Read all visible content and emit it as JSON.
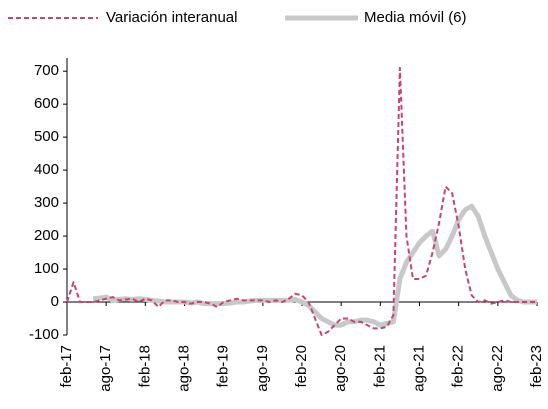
{
  "chart_data": {
    "type": "line",
    "categories": [
      "feb-17",
      null,
      null,
      null,
      null,
      null,
      "ago-17",
      null,
      null,
      null,
      null,
      null,
      "feb-18",
      null,
      null,
      null,
      null,
      null,
      "ago-18",
      null,
      null,
      null,
      null,
      null,
      "feb-19",
      null,
      null,
      null,
      null,
      null,
      "ago-19",
      null,
      null,
      null,
      null,
      null,
      "feb-20",
      null,
      null,
      null,
      null,
      null,
      "ago-20",
      null,
      null,
      null,
      null,
      null,
      "feb-21",
      null,
      null,
      null,
      null,
      null,
      "ago-21",
      null,
      null,
      null,
      null,
      null,
      "feb-22",
      null,
      null,
      null,
      null,
      null,
      "ago-22",
      null,
      null,
      null,
      null,
      null,
      "feb-23"
    ],
    "series": [
      {
        "name": "Variación interanual",
        "color": "#c3466f",
        "dashed": true,
        "values": [
          0,
          60,
          0,
          0,
          0,
          5,
          10,
          15,
          5,
          8,
          10,
          0,
          10,
          5,
          -15,
          5,
          5,
          0,
          0,
          -5,
          0,
          0,
          -5,
          -15,
          0,
          5,
          10,
          5,
          5,
          5,
          5,
          0,
          5,
          0,
          10,
          25,
          20,
          0,
          -50,
          -100,
          -90,
          -70,
          -50,
          -50,
          -60,
          -60,
          -70,
          -80,
          -80,
          -75,
          -40,
          710,
          200,
          70,
          70,
          80,
          150,
          240,
          350,
          330,
          230,
          100,
          20,
          0,
          5,
          -5,
          0,
          5,
          0,
          0,
          0,
          0,
          0
        ]
      },
      {
        "name": "Media móvil (6)",
        "color": "#c8c8c8",
        "dashed": false,
        "values": [
          null,
          null,
          null,
          null,
          10,
          12,
          15,
          5,
          8,
          10,
          8,
          10,
          8,
          5,
          3,
          0,
          0,
          0,
          0,
          -3,
          0,
          -5,
          -5,
          -5,
          -5,
          -3,
          0,
          0,
          3,
          5,
          5,
          5,
          5,
          5,
          5,
          8,
          0,
          -10,
          -30,
          -50,
          -60,
          -70,
          -70,
          -60,
          -60,
          -55,
          -55,
          -60,
          -70,
          -65,
          -60,
          70,
          120,
          150,
          180,
          200,
          215,
          140,
          160,
          200,
          250,
          280,
          290,
          260,
          200,
          150,
          100,
          60,
          20,
          5,
          0,
          0,
          0
        ]
      }
    ],
    "ylim": [
      -100,
      740
    ],
    "yticks": [
      -100,
      0,
      100,
      200,
      300,
      400,
      500,
      600,
      700
    ]
  }
}
